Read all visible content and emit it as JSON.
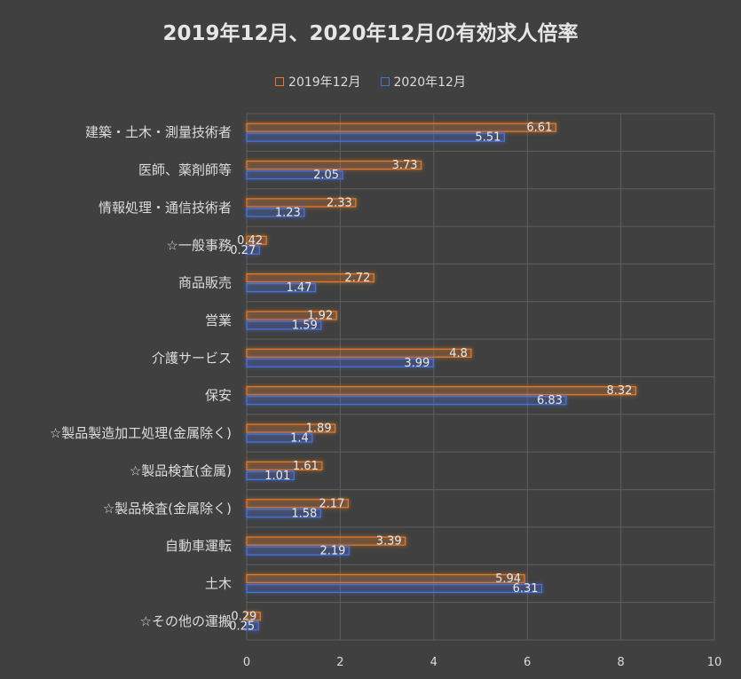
{
  "chart_data": {
    "type": "bar",
    "orientation": "horizontal",
    "title": "2019年12月、2020年12月の有効求人倍率",
    "categories": [
      "建築・土木・測量技術者",
      "医師、薬剤師等",
      "情報処理・通信技術者",
      "☆一般事務",
      "商品販売",
      "営業",
      "介護サービス",
      "保安",
      "☆製品製造加工処理(金属除く)",
      "☆製品検査(金属)",
      "☆製品検査(金属除く)",
      "自動車運転",
      "土木",
      "☆その他の運搬"
    ],
    "series": [
      {
        "name": "2019年12月",
        "color": "#e87a2c",
        "values": [
          6.61,
          3.73,
          2.33,
          0.42,
          2.72,
          1.92,
          4.8,
          8.32,
          1.89,
          1.61,
          2.17,
          3.39,
          5.94,
          0.29
        ],
        "labels": [
          "6.61",
          "3.73",
          "2.33",
          "0.42",
          "2.72",
          "1.92",
          "4.8",
          "8.32",
          "1.89",
          "1.61",
          "2.17",
          "3.39",
          "5.94",
          "0.29"
        ]
      },
      {
        "name": "2020年12月",
        "color": "#4a74d9",
        "values": [
          5.51,
          2.05,
          1.23,
          0.27,
          1.47,
          1.59,
          3.99,
          6.83,
          1.4,
          1.01,
          1.58,
          2.19,
          6.31,
          0.25
        ],
        "labels": [
          "5.51",
          "2.05",
          "1.23",
          "0.27",
          "1.47",
          "1.59",
          "3.99",
          "6.83",
          "1.4",
          "1.01",
          "1.58",
          "2.19",
          "6.31",
          "0.25"
        ]
      }
    ],
    "xlim": [
      0,
      10
    ],
    "xticks": [
      "0",
      "2",
      "4",
      "6",
      "8",
      "10"
    ],
    "xlabel": "",
    "ylabel": "",
    "grid": true,
    "legend_position": "top"
  }
}
